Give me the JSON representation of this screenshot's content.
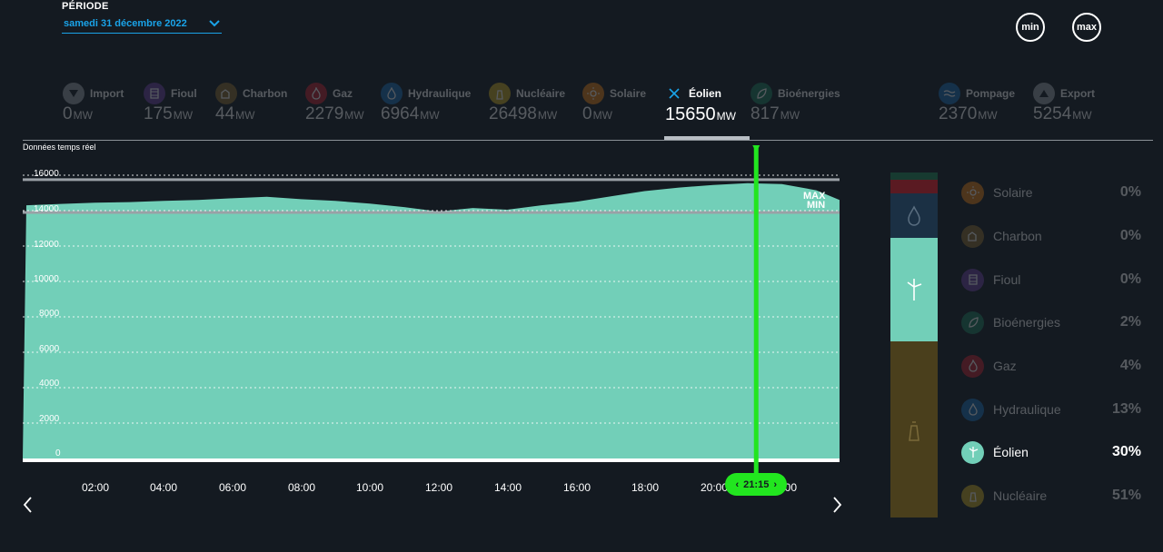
{
  "header": {
    "period_label": "PÉRIODE",
    "period_value": "samedi 31 décembre 2022",
    "min_label": "min",
    "max_label": "max"
  },
  "sources": [
    {
      "label": "Import",
      "value": "0",
      "unit": "MW",
      "icon": "import-arrow-icon",
      "color": "#9aa0a6"
    },
    {
      "label": "Fioul",
      "value": "175",
      "unit": "MW",
      "icon": "oil-barrel-icon",
      "color": "#6b3fa0"
    },
    {
      "label": "Charbon",
      "value": "44",
      "unit": "MW",
      "icon": "coal-icon",
      "color": "#8a6b2c"
    },
    {
      "label": "Gaz",
      "value": "2279",
      "unit": "MW",
      "icon": "gas-flame-icon",
      "color": "#c0202d"
    },
    {
      "label": "Hydraulique",
      "value": "6964",
      "unit": "MW",
      "icon": "water-drop-icon",
      "color": "#1b6fb5"
    },
    {
      "label": "Nucléaire",
      "value": "26498",
      "unit": "MW",
      "icon": "nuclear-plant-icon",
      "color": "#c6a520"
    },
    {
      "label": "Solaire",
      "value": "0",
      "unit": "MW",
      "icon": "sun-icon",
      "color": "#e07a12"
    },
    {
      "label": "Éolien",
      "value": "15650",
      "unit": "MW",
      "icon": "wind-close-icon",
      "color": "#1aa3e8"
    },
    {
      "label": "Bioénergies",
      "value": "817",
      "unit": "MW",
      "icon": "leaf-icon",
      "color": "#1e7a5a"
    },
    {
      "label": "Pompage",
      "value": "2370",
      "unit": "MW",
      "icon": "pumping-waves-icon",
      "color": "#1b6fb5"
    },
    {
      "label": "Export",
      "value": "5254",
      "unit": "MW",
      "icon": "export-arrow-icon",
      "color": "#9aa0a6"
    }
  ],
  "chart_label": "Données temps réel",
  "chart_data": {
    "type": "area",
    "title": "",
    "xlabel": "",
    "ylabel": "",
    "ylim": [
      0,
      16500
    ],
    "y_ticks": [
      "16000",
      "14000",
      "12000",
      "10000",
      "8000",
      "6000",
      "4000",
      "2000",
      "0"
    ],
    "x_ticks": [
      "02:00",
      "04:00",
      "06:00",
      "08:00",
      "10:00",
      "12:00",
      "14:00",
      "16:00",
      "18:00",
      "20:00",
      "22:00"
    ],
    "x_hours": [
      0,
      1,
      2,
      3,
      4,
      5,
      6,
      7,
      8,
      9,
      10,
      11,
      12,
      13,
      14,
      15,
      16,
      17,
      18,
      19,
      20,
      21,
      22,
      23,
      23.75
    ],
    "series": [
      {
        "values": [
          14300,
          14380,
          14450,
          14480,
          14550,
          14600,
          14700,
          14780,
          14650,
          14550,
          14400,
          14200,
          13950,
          14150,
          14050,
          14300,
          14500,
          14800,
          15100,
          15300,
          15450,
          15550,
          15500,
          15150,
          14600
        ]
      }
    ],
    "max_line": 15750,
    "min_line": 13900,
    "max_label": "MAX",
    "min_label": "MIN",
    "cursor_hour": 21.25,
    "cursor_label": "21:15",
    "area_color": "#72cfb8",
    "cursor_color": "#22e61f",
    "grid": true
  },
  "mix": {
    "segments": [
      {
        "name": "Nucléaire",
        "pct": 51,
        "color": "#4a3f1c"
      },
      {
        "name": "Éolien",
        "pct": 30,
        "color": "#72cfb8"
      },
      {
        "name": "Hydraulique",
        "pct": 13,
        "color": "#1b3044"
      },
      {
        "name": "Gaz",
        "pct": 4,
        "color": "#5a1a22"
      },
      {
        "name": "Bioénergies",
        "pct": 2,
        "color": "#173a30"
      }
    ],
    "legend": [
      {
        "name": "Solaire",
        "pct": "0%",
        "icon": "sun-icon",
        "color": "#e07a12"
      },
      {
        "name": "Charbon",
        "pct": "0%",
        "icon": "coal-icon",
        "color": "#8a6b2c"
      },
      {
        "name": "Fioul",
        "pct": "0%",
        "icon": "oil-barrel-icon",
        "color": "#6b3fa0"
      },
      {
        "name": "Bioénergies",
        "pct": "2%",
        "icon": "leaf-icon",
        "color": "#1e7a5a"
      },
      {
        "name": "Gaz",
        "pct": "4%",
        "icon": "gas-flame-icon",
        "color": "#c0202d"
      },
      {
        "name": "Hydraulique",
        "pct": "13%",
        "icon": "water-drop-icon",
        "color": "#1b6fb5"
      },
      {
        "name": "Éolien",
        "pct": "30%",
        "icon": "wind-turbine-icon",
        "color": "#72cfb8",
        "active": true
      },
      {
        "name": "Nucléaire",
        "pct": "51%",
        "icon": "nuclear-plant-icon",
        "color": "#c6a520"
      }
    ]
  }
}
